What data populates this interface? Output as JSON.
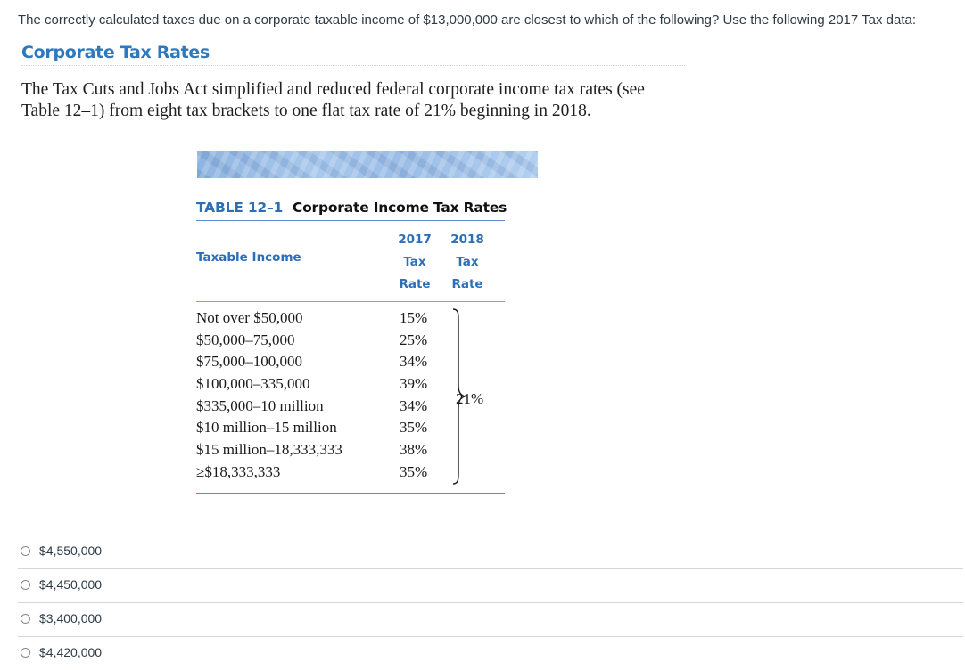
{
  "question": {
    "prompt": "The correctly calculated taxes due on a corporate taxable income of $13,000,000 are closest to which of the following? Use the following 2017 Tax data:"
  },
  "figure": {
    "heading": "Corporate Tax Rates",
    "body_line1": "The Tax Cuts and Jobs Act simplified and reduced federal corporate income tax rates (see",
    "body_line2": "Table 12–1) from eight tax brackets to one flat tax rate of 21% beginning in 2018.",
    "table": {
      "number": "TABLE 12–1",
      "name": "Corporate Income Tax Rates",
      "col_income": "Taxable Income",
      "col_2017": [
        "2017",
        "Tax",
        "Rate"
      ],
      "col_2018": [
        "2018",
        "Tax",
        "Rate"
      ],
      "rows": [
        {
          "income": "Not over $50,000",
          "rate_2017": "15%"
        },
        {
          "income": "$50,000–75,000",
          "rate_2017": "25%"
        },
        {
          "income": "$75,000–100,000",
          "rate_2017": "34%"
        },
        {
          "income": "$100,000–335,000",
          "rate_2017": "39%"
        },
        {
          "income": "$335,000–10 million",
          "rate_2017": "34%"
        },
        {
          "income": "$10 million–15 million",
          "rate_2017": "35%"
        },
        {
          "income": "$15 million–18,333,333",
          "rate_2017": "38%"
        },
        {
          "income": "≥$18,333,333",
          "rate_2017": "35%"
        }
      ],
      "rate_2018": "21%"
    }
  },
  "answers": [
    {
      "label": "$4,550,000",
      "selected": false
    },
    {
      "label": "$4,450,000",
      "selected": false
    },
    {
      "label": "$3,400,000",
      "selected": false
    },
    {
      "label": "$4,420,000",
      "selected": false
    }
  ],
  "colors": {
    "heading": "#2d79be",
    "table_accent": "#2d6fb6",
    "text": "#2d3b45"
  }
}
